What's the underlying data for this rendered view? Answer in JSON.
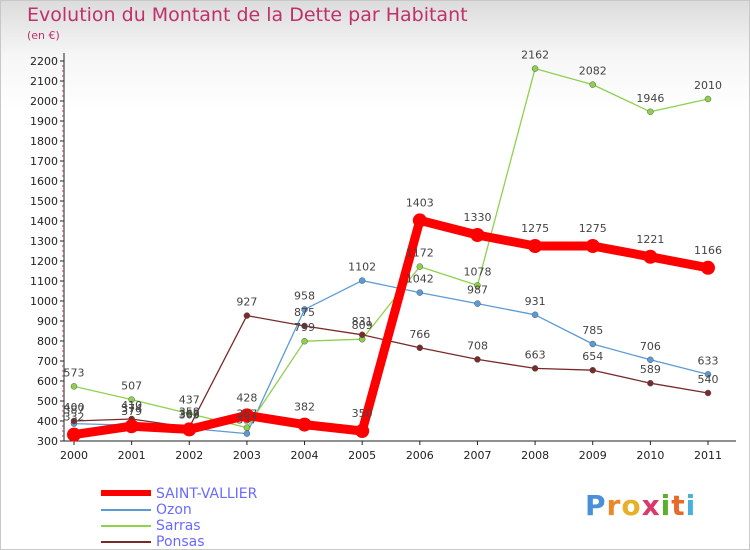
{
  "title": "Evolution du Montant de la Dette par Habitant",
  "unit_label": "(en €)",
  "logo_text": "Proxiti",
  "chart_data": {
    "type": "line",
    "x": [
      "2000",
      "2001",
      "2002",
      "2003",
      "2004",
      "2005",
      "2006",
      "2007",
      "2008",
      "2009",
      "2010",
      "2011"
    ],
    "ylim": [
      300,
      2200
    ],
    "yticks": [
      300,
      400,
      500,
      600,
      700,
      800,
      900,
      1000,
      1100,
      1200,
      1300,
      1400,
      1500,
      1600,
      1700,
      1800,
      1900,
      2000,
      2100,
      2200
    ],
    "grid": false,
    "legend_position": "bottom-left",
    "series": [
      {
        "name": "SAINT-VALLIER",
        "color": "#ff0000",
        "values": [
          332,
          374,
          358,
          428,
          382,
          350,
          1403,
          1330,
          1275,
          1275,
          1221,
          1166
        ]
      },
      {
        "name": "Ozon",
        "color": "#5b9bd5",
        "values": [
          387,
          379,
          363,
          337,
          958,
          1102,
          1042,
          987,
          931,
          785,
          706,
          633
        ]
      },
      {
        "name": "Sarras",
        "color": "#8ed14c",
        "values": [
          573,
          507,
          437,
          367,
          799,
          809,
          1172,
          1078,
          2162,
          2082,
          1946,
          2010
        ]
      },
      {
        "name": "Ponsas",
        "color": "#7b2a2a",
        "values": [
          400,
          410,
          368,
          927,
          875,
          831,
          766,
          708,
          663,
          654,
          589,
          540
        ]
      }
    ]
  }
}
